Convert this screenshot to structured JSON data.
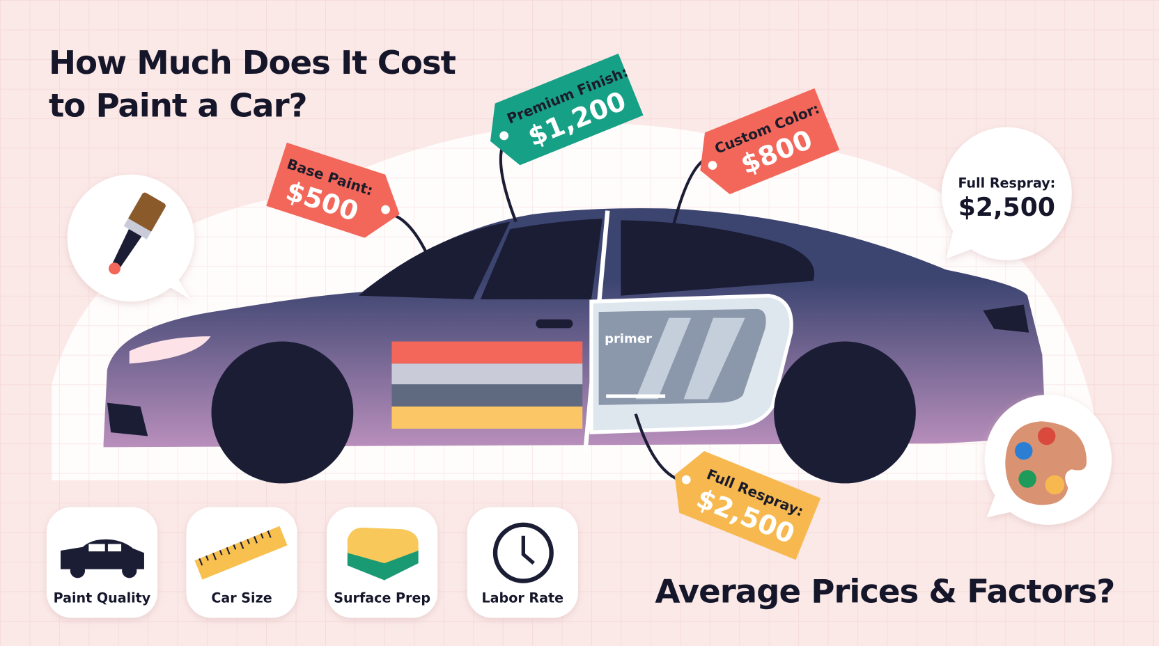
{
  "title": {
    "line1": "How Much Does It Cost",
    "line2": "to Paint a Car?"
  },
  "subtitle": "Average Prices & Factors?",
  "tags": [
    {
      "label": "Base Paint:",
      "value": "$500",
      "color": "#f2675a"
    },
    {
      "label": "Premium Finish:",
      "value": "$1,200",
      "color": "#16a085"
    },
    {
      "label": "Custom Color:",
      "value": "$800",
      "color": "#f2675a"
    },
    {
      "label": "Full Respray:",
      "value": "$2,500",
      "color": "#f7b94f"
    }
  ],
  "bubble": {
    "label": "Full Respray:",
    "value": "$2,500"
  },
  "primer_label": "primer",
  "icons": {
    "left": "paintbrush-icon",
    "right": "palette-icon"
  },
  "factors": [
    {
      "label": "Paint Quality",
      "icon": "car-icon"
    },
    {
      "label": "Car Size",
      "icon": "ruler-icon"
    },
    {
      "label": "Surface Prep",
      "icon": "sponge-icon"
    },
    {
      "label": "Labor Rate",
      "icon": "clock-icon"
    }
  ],
  "colors": {
    "background": "#fbe9e8",
    "car_top": "#3c4470",
    "car_bottom": "#b48cba",
    "dark": "#1b1d35"
  }
}
